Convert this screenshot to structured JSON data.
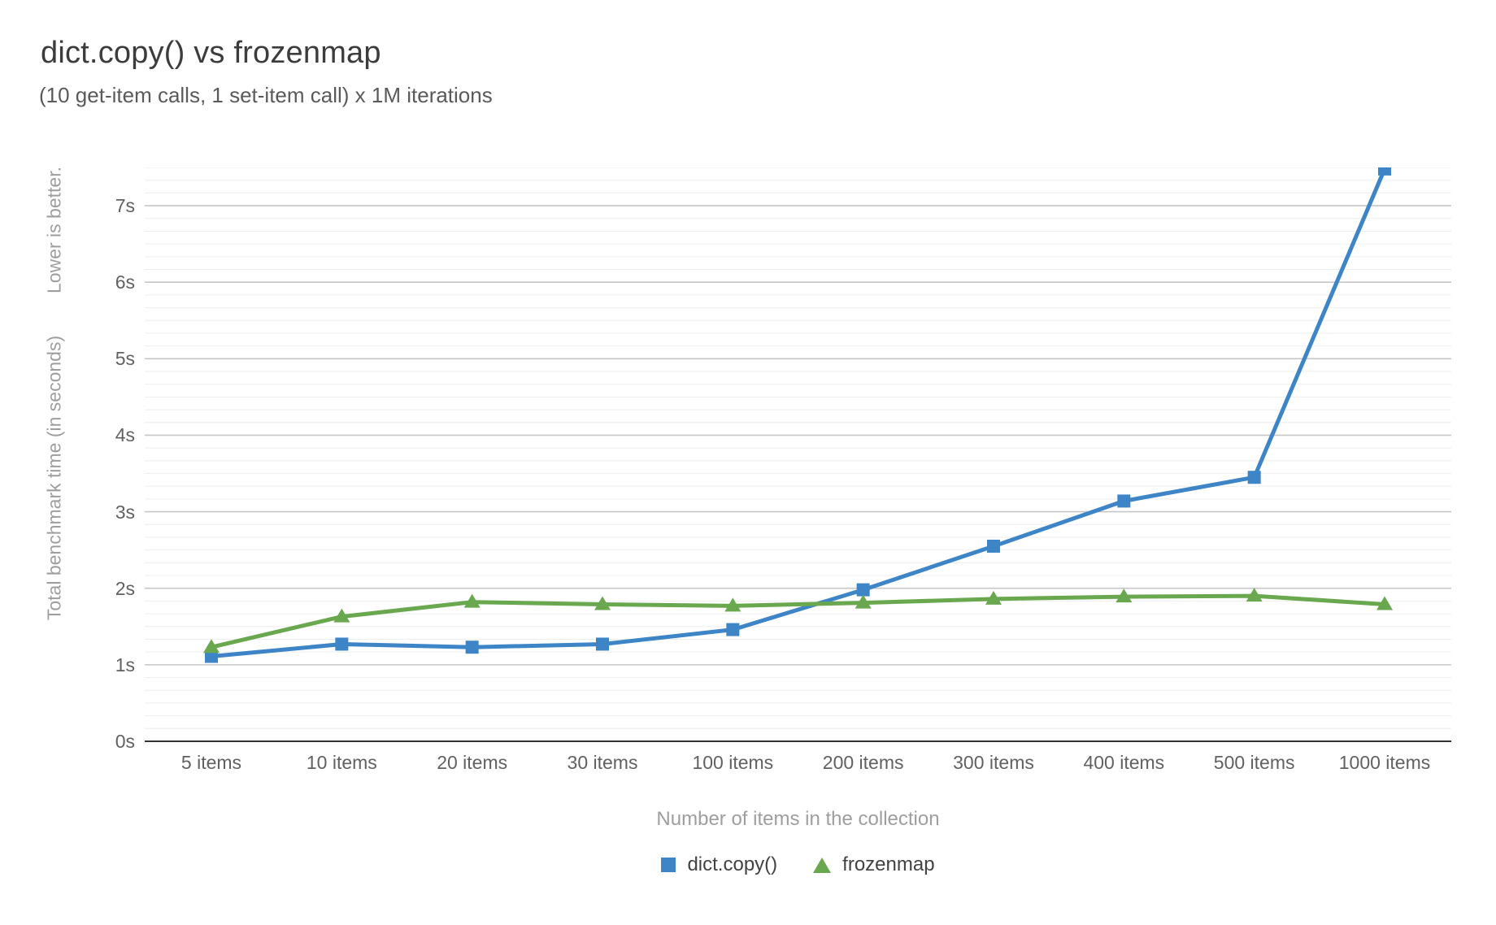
{
  "header": {
    "title": "dict.copy() vs frozenmap",
    "subtitle": "(10 get-item calls, 1 set-item call) x 1M iterations"
  },
  "chart_data": {
    "type": "line",
    "title": "dict.copy() vs frozenmap",
    "subtitle": "(10 get-item calls, 1 set-item call) x 1M iterations",
    "categories": [
      "5 items",
      "10 items",
      "20 items",
      "30 items",
      "100 items",
      "200 items",
      "300 items",
      "400 items",
      "500 items",
      "1000 items"
    ],
    "series": [
      {
        "name": "dict.copy()",
        "marker": "square",
        "color": "#3d85c6",
        "values": [
          1.11,
          1.27,
          1.23,
          1.27,
          1.46,
          1.98,
          2.55,
          3.14,
          3.45,
          7.48
        ]
      },
      {
        "name": "frozenmap",
        "marker": "triangle",
        "color": "#6aa84f",
        "values": [
          1.23,
          1.63,
          1.82,
          1.79,
          1.77,
          1.81,
          1.86,
          1.89,
          1.9,
          1.79
        ]
      }
    ],
    "xlabel": "Number of items in the collection",
    "ylabel": "Total benchmark time (in seconds)",
    "ylabel_note": "Lower is better.",
    "y_ticks": [
      "0s",
      "1s",
      "2s",
      "3s",
      "4s",
      "5s",
      "6s",
      "7s"
    ],
    "ylim": [
      0,
      7.5
    ],
    "y_major_step": 1,
    "y_minor_divisions": 6,
    "grid": true,
    "legend_position": "bottom"
  },
  "colors": {
    "background": "#ffffff",
    "major_gridline": "#c6c6c6",
    "minor_gridline": "#eeeeee",
    "baseline": "#333333",
    "tick_label": "#616161",
    "axis_title": "#9e9e9e",
    "title_text": "#3c3c3c",
    "subtitle_text": "#5a5a5a",
    "series_blue": "#3d85c6",
    "series_green": "#6aa84f"
  }
}
